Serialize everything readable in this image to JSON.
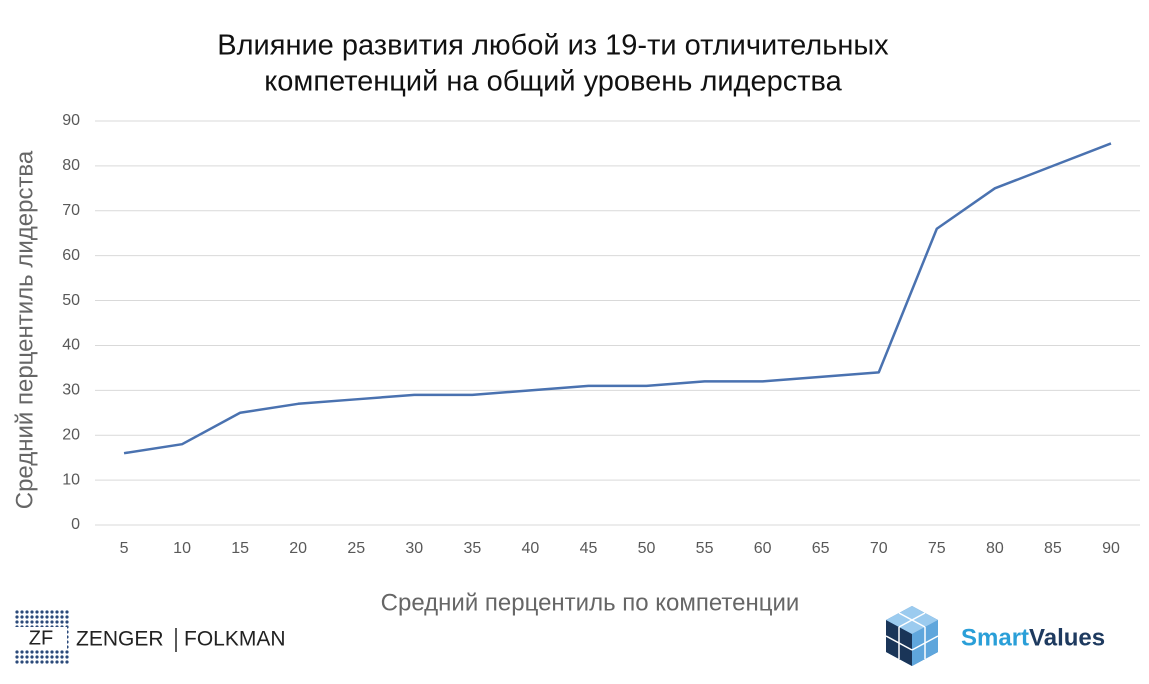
{
  "chart_data": {
    "type": "line",
    "title": [
      "Влияние развития любой из 19-ти отличительных",
      "компетенций на общий уровень лидерства"
    ],
    "x_label": "Средний перцентиль по компетенции",
    "y_label": "Средний перцентиль лидерства",
    "x": [
      5,
      10,
      15,
      20,
      25,
      30,
      35,
      40,
      45,
      50,
      55,
      60,
      65,
      70,
      75,
      80,
      85,
      90
    ],
    "series": [
      {
        "name": "Средний перцентиль лидерства",
        "color": "#4a72b0",
        "values": [
          16,
          18,
          25,
          27,
          28,
          29,
          29,
          30,
          31,
          31,
          32,
          32,
          33,
          34,
          66,
          75,
          80,
          85
        ]
      }
    ],
    "xlim": [
      2.5,
      92.5
    ],
    "xticks": [
      5,
      10,
      15,
      20,
      25,
      30,
      35,
      40,
      45,
      50,
      55,
      60,
      65,
      70,
      75,
      80,
      85,
      90
    ],
    "ylim": [
      0,
      90
    ],
    "yticks": [
      0,
      10,
      20,
      30,
      40,
      50,
      60,
      70,
      80,
      90
    ],
    "grid": true
  },
  "branding": {
    "left_logo": [
      "ZF",
      "ZENGER",
      "FOLKMAN"
    ],
    "right_logo": [
      "Smart",
      "Values"
    ]
  }
}
